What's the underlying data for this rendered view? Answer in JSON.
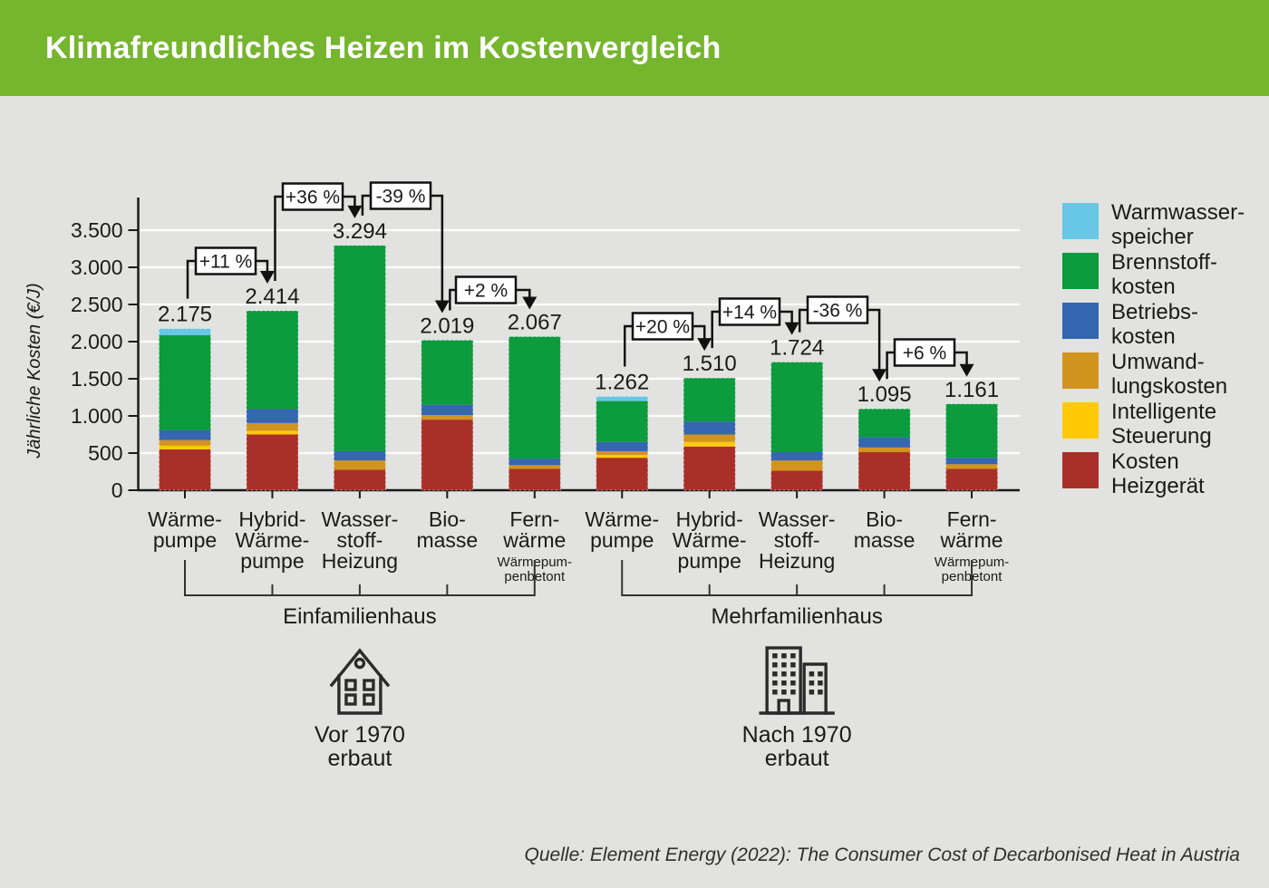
{
  "header": {
    "title": "Klimafreundliches Heizen im Kostenvergleich"
  },
  "colors": {
    "header_green": "#76B52E",
    "background": "#E2E2E1",
    "axis": "#1a1a1a",
    "grid": "#ffffff",
    "warmwasser": "#68C7E5",
    "brennstoff": "#0C9B3D",
    "betrieb": "#3566B0",
    "umwandlung": "#D0941F",
    "steuerung": "#FFC908",
    "heizgeraet": "#A93028"
  },
  "y_axis": {
    "title": "Jährliche Kosten (€/J)",
    "tick_values": [
      0,
      500,
      1000,
      1500,
      2000,
      2500,
      3000,
      3500
    ],
    "tick_labels": [
      "0",
      "500",
      "1.000",
      "1.500",
      "2.000",
      "2.500",
      "3.000",
      "3.500"
    ]
  },
  "legend": {
    "items": [
      {
        "key": "warmwasser",
        "lines": [
          "Warmwasser-",
          "speicher"
        ]
      },
      {
        "key": "brennstoff",
        "lines": [
          "Brennstoff-",
          "kosten"
        ]
      },
      {
        "key": "betrieb",
        "lines": [
          "Betriebs-",
          "kosten"
        ]
      },
      {
        "key": "umwandlung",
        "lines": [
          "Umwand-",
          "lungskosten"
        ]
      },
      {
        "key": "steuerung",
        "lines": [
          "Intelligente",
          "Steuerung"
        ]
      },
      {
        "key": "heizgeraet",
        "lines": [
          "Kosten",
          "Heizgerät"
        ]
      }
    ]
  },
  "chart_data": {
    "type": "bar",
    "stacked": true,
    "title": "Klimafreundliches Heizen im Kostenvergleich",
    "ylabel": "Jährliche Kosten (€/J)",
    "ylim": [
      0,
      3500
    ],
    "grid": true,
    "legend_position": "right",
    "stack_order": [
      "heizgeraet",
      "steuerung",
      "umwandlung",
      "betrieb",
      "brennstoff",
      "warmwasser"
    ],
    "series_names": {
      "warmwasser": "Warmwasserspeicher",
      "brennstoff": "Brennstoffkosten",
      "betrieb": "Betriebskosten",
      "umwandlung": "Umwandlungskosten",
      "steuerung": "Intelligente Steuerung",
      "heizgeraet": "Kosten Heizgerät"
    },
    "bars": [
      {
        "group": "Einfamilienhaus",
        "label_lines": [
          "Wärme-",
          "pumpe"
        ],
        "sublabel_lines": [],
        "total": 2175,
        "total_label": "2.175",
        "segments": {
          "heizgeraet": 550,
          "steuerung": 50,
          "umwandlung": 75,
          "betrieb": 135,
          "brennstoff": 1278,
          "warmwasser": 87
        }
      },
      {
        "group": "Einfamilienhaus",
        "label_lines": [
          "Hybrid-",
          "Wärme-",
          "pumpe"
        ],
        "sublabel_lines": [],
        "total": 2414,
        "total_label": "2.414",
        "segments": {
          "heizgeraet": 750,
          "steuerung": 50,
          "umwandlung": 104,
          "betrieb": 187,
          "brennstoff": 1323,
          "warmwasser": 0
        }
      },
      {
        "group": "Einfamilienhaus",
        "label_lines": [
          "Wasser-",
          "stoff-",
          "Heizung"
        ],
        "sublabel_lines": [],
        "total": 3294,
        "total_label": "3.294",
        "segments": {
          "heizgeraet": 275,
          "steuerung": 0,
          "umwandlung": 125,
          "betrieb": 125,
          "brennstoff": 2769,
          "warmwasser": 0
        }
      },
      {
        "group": "Einfamilienhaus",
        "label_lines": [
          "Bio-",
          "masse"
        ],
        "sublabel_lines": [],
        "total": 2019,
        "total_label": "2.019",
        "segments": {
          "heizgeraet": 950,
          "steuerung": 0,
          "umwandlung": 62,
          "betrieb": 138,
          "brennstoff": 869,
          "warmwasser": 0
        }
      },
      {
        "group": "Einfamilienhaus",
        "label_lines": [
          "Fern-",
          "wärme"
        ],
        "sublabel_lines": [
          "Wärmepum-",
          "penbetont"
        ],
        "total": 2067,
        "total_label": "2.067",
        "segments": {
          "heizgeraet": 287,
          "steuerung": 0,
          "umwandlung": 50,
          "betrieb": 88,
          "brennstoff": 1642,
          "warmwasser": 0
        }
      },
      {
        "group": "Mehrfamilienhaus",
        "label_lines": [
          "Wärme-",
          "pumpe"
        ],
        "sublabel_lines": [],
        "total": 1262,
        "total_label": "1.262",
        "segments": {
          "heizgeraet": 437,
          "steuerung": 38,
          "umwandlung": 50,
          "betrieb": 125,
          "brennstoff": 550,
          "warmwasser": 62
        }
      },
      {
        "group": "Mehrfamilienhaus",
        "label_lines": [
          "Hybrid-",
          "Wärme-",
          "pumpe"
        ],
        "sublabel_lines": [],
        "total": 1510,
        "total_label": "1.510",
        "segments": {
          "heizgeraet": 588,
          "steuerung": 62,
          "umwandlung": 100,
          "betrieb": 175,
          "brennstoff": 585,
          "warmwasser": 0
        }
      },
      {
        "group": "Mehrfamilienhaus",
        "label_lines": [
          "Wasser-",
          "stoff-",
          "Heizung"
        ],
        "sublabel_lines": [],
        "total": 1724,
        "total_label": "1.724",
        "segments": {
          "heizgeraet": 262,
          "steuerung": 0,
          "umwandlung": 138,
          "betrieb": 112,
          "brennstoff": 1212,
          "warmwasser": 0
        }
      },
      {
        "group": "Mehrfamilienhaus",
        "label_lines": [
          "Bio-",
          "masse"
        ],
        "sublabel_lines": [],
        "total": 1095,
        "total_label": "1.095",
        "segments": {
          "heizgeraet": 512,
          "steuerung": 0,
          "umwandlung": 63,
          "betrieb": 137,
          "brennstoff": 383,
          "warmwasser": 0
        }
      },
      {
        "group": "Mehrfamilienhaus",
        "label_lines": [
          "Fern-",
          "wärme"
        ],
        "sublabel_lines": [
          "Wärmepum-",
          "penbetont"
        ],
        "total": 1161,
        "total_label": "1.161",
        "segments": {
          "heizgeraet": 287,
          "steuerung": 0,
          "umwandlung": 63,
          "betrieb": 87,
          "brennstoff": 724,
          "warmwasser": 0
        }
      }
    ],
    "callouts": [
      {
        "label": "+11 %",
        "from": 0,
        "to": 1
      },
      {
        "label": "+36 %",
        "from": 1,
        "to": 2
      },
      {
        "label": "-39 %",
        "from": 2,
        "to": 3
      },
      {
        "label": "+2 %",
        "from": 3,
        "to": 4
      },
      {
        "label": "+20 %",
        "from": 5,
        "to": 6
      },
      {
        "label": "+14 %",
        "from": 6,
        "to": 7
      },
      {
        "label": "-36 %",
        "from": 7,
        "to": 8
      },
      {
        "label": "+6 %",
        "from": 8,
        "to": 9
      }
    ],
    "groups": [
      {
        "label": "Einfamilienhaus",
        "icon": "house-icon",
        "era_lines": [
          "Vor 1970",
          "erbaut"
        ],
        "first_bar": 0,
        "last_bar": 4
      },
      {
        "label": "Mehrfamilienhaus",
        "icon": "buildings-icon",
        "era_lines": [
          "Nach 1970",
          "erbaut"
        ],
        "first_bar": 5,
        "last_bar": 9
      }
    ]
  },
  "footer": {
    "source": "Quelle: Element Energy (2022): The Consumer Cost of Decarbonised Heat in Austria"
  }
}
